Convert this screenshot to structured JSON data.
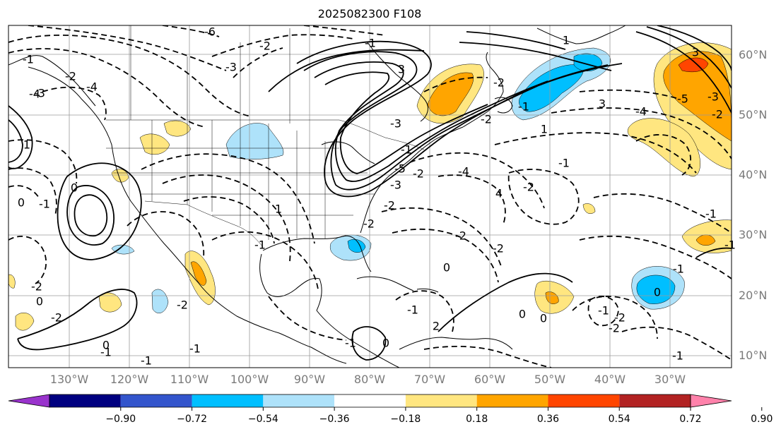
{
  "title": "2025082300 F108",
  "lat_labels": [
    "60°N",
    "50°N",
    "40°N",
    "30°N",
    "20°N",
    "10°N"
  ],
  "lon_labels": [
    "130°W",
    "120°W",
    "110°W",
    "100°W",
    "90°W",
    "80°W",
    "70°W",
    "60°W",
    "50°W",
    "40°W",
    "30°W"
  ],
  "contour_labels": [
    "-6",
    "-2",
    "-3",
    "3",
    "-1",
    "1",
    "-2",
    "-4",
    "-2",
    "-4",
    "1",
    "-3",
    "3",
    "-2",
    "-4",
    "-1",
    "-3",
    "-5",
    "-2",
    "-1",
    "-3",
    "-2",
    "4",
    "3",
    "-5",
    "-3",
    "-2",
    "-4",
    "-2",
    "1",
    "-1",
    "-2",
    "0",
    "-2",
    "-1",
    "-2",
    "1",
    "-1",
    "-2",
    "-2",
    "0",
    "-1",
    "0",
    "-2",
    "0",
    "-1",
    "-1",
    "2",
    "0",
    "0",
    "0",
    "-1",
    "-2",
    "-2",
    "-1",
    "0",
    "-1",
    "-1",
    "-1",
    "-1",
    "0",
    "-1",
    "-1"
  ],
  "colorbar": {
    "ticks": [
      "−0.90",
      "−0.72",
      "−0.54",
      "−0.36",
      "−0.18",
      "0.18",
      "0.36",
      "0.54",
      "0.72",
      "0.90"
    ],
    "colors": [
      "#9933cc",
      "#000080",
      "#3355cc",
      "#00bfff",
      "#aee2fa",
      "#ffffff",
      "#ffe680",
      "#ffa500",
      "#ff4500",
      "#b22222",
      "#ff82ab"
    ]
  },
  "colors": {
    "pos_low": "#ffe680",
    "pos_mid": "#ffa500",
    "pos_high": "#ff4500",
    "neg_low": "#aee2fa",
    "neg_mid": "#00bfff",
    "contour": "#000000",
    "grid": "#9a9a9a",
    "coast": "#000000"
  }
}
